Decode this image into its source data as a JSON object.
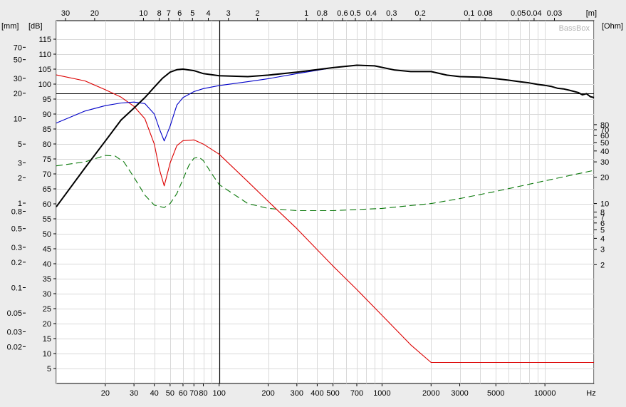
{
  "chart_data": {
    "type": "line",
    "brand": "BassBox",
    "units": {
      "top": "[m]",
      "left_mm": "[mm]",
      "left_db": "[dB]",
      "right": "[Ohm]",
      "bottom": "Hz"
    },
    "x_axis": {
      "scale": "log",
      "range": [
        10,
        20000
      ],
      "ticks": [
        {
          "v": 20,
          "label": "20"
        },
        {
          "v": 30,
          "label": "30"
        },
        {
          "v": 40,
          "label": "40"
        },
        {
          "v": 50,
          "label": "50"
        },
        {
          "v": 60,
          "label": "60"
        },
        {
          "v": 70,
          "label": "70"
        },
        {
          "v": 80,
          "label": "80"
        },
        {
          "v": 100,
          "label": "100"
        },
        {
          "v": 200,
          "label": "200"
        },
        {
          "v": 300,
          "label": "300"
        },
        {
          "v": 400,
          "label": "400"
        },
        {
          "v": 500,
          "label": "500"
        },
        {
          "v": 700,
          "label": "700"
        },
        {
          "v": 1000,
          "label": "1000"
        },
        {
          "v": 2000,
          "label": "2000"
        },
        {
          "v": 3000,
          "label": "3000"
        },
        {
          "v": 5000,
          "label": "5000"
        },
        {
          "v": 10000,
          "label": "10000"
        }
      ]
    },
    "top_axis": {
      "ticks": [
        {
          "v": 11.4,
          "label": "30"
        },
        {
          "v": 17.2,
          "label": "20"
        },
        {
          "v": 34.3,
          "label": "10"
        },
        {
          "v": 42.9,
          "label": "8"
        },
        {
          "v": 49,
          "label": "7"
        },
        {
          "v": 57.2,
          "label": "6"
        },
        {
          "v": 68.6,
          "label": "5"
        },
        {
          "v": 85.8,
          "label": "4"
        },
        {
          "v": 114,
          "label": "3"
        },
        {
          "v": 172,
          "label": "2"
        },
        {
          "v": 343,
          "label": "1"
        },
        {
          "v": 429,
          "label": "0.8"
        },
        {
          "v": 572,
          "label": "0.6"
        },
        {
          "v": 686,
          "label": "0.5"
        },
        {
          "v": 858,
          "label": "0.4"
        },
        {
          "v": 1144,
          "label": "0.3"
        },
        {
          "v": 1716,
          "label": "0.2"
        },
        {
          "v": 3430,
          "label": "0.1"
        },
        {
          "v": 4290,
          "label": "0.08"
        },
        {
          "v": 6860,
          "label": "0.05"
        },
        {
          "v": 8580,
          "label": "0.04"
        },
        {
          "v": 11440,
          "label": "0.03"
        }
      ]
    },
    "y_db": {
      "range": [
        0,
        120
      ],
      "ticks": [
        5,
        10,
        15,
        20,
        25,
        30,
        35,
        40,
        45,
        50,
        55,
        60,
        65,
        70,
        75,
        80,
        85,
        90,
        95,
        100,
        105,
        110,
        115
      ]
    },
    "y_mm": {
      "scale": "log",
      "ticks": [
        {
          "v": 0.02,
          "label": "0.02"
        },
        {
          "v": 0.03,
          "label": "0.03"
        },
        {
          "v": 0.05,
          "label": "0.05"
        },
        {
          "v": 0.1,
          "label": "0.1"
        },
        {
          "v": 0.2,
          "label": "0.2"
        },
        {
          "v": 0.3,
          "label": "0.3"
        },
        {
          "v": 0.5,
          "label": "0.5"
        },
        {
          "v": 0.8,
          "label": "0.8"
        },
        {
          "v": 1,
          "label": "1"
        },
        {
          "v": 2,
          "label": "2"
        },
        {
          "v": 3,
          "label": "3"
        },
        {
          "v": 5,
          "label": "5"
        },
        {
          "v": 10,
          "label": "10"
        },
        {
          "v": 20,
          "label": "20"
        },
        {
          "v": 30,
          "label": "30"
        },
        {
          "v": 50,
          "label": "50"
        },
        {
          "v": 70,
          "label": "70"
        }
      ]
    },
    "y_ohm": {
      "scale": "log",
      "ticks": [
        {
          "v": 2,
          "label": "2"
        },
        {
          "v": 3,
          "label": "3"
        },
        {
          "v": 4,
          "label": "4"
        },
        {
          "v": 5,
          "label": "5"
        },
        {
          "v": 6,
          "label": "6"
        },
        {
          "v": 7,
          "label": "7"
        },
        {
          "v": 8,
          "label": "8"
        },
        {
          "v": 10,
          "label": "10"
        },
        {
          "v": 20,
          "label": "20"
        },
        {
          "v": 30,
          "label": "30"
        },
        {
          "v": 40,
          "label": "40"
        },
        {
          "v": 50,
          "label": "50"
        },
        {
          "v": 60,
          "label": "60"
        },
        {
          "v": 70,
          "label": "70"
        },
        {
          "v": 80,
          "label": "80"
        }
      ]
    },
    "reference_lines": {
      "vertical_hz": 100,
      "horizontal_db": 97
    },
    "series": [
      {
        "color": "#000000",
        "style": "solid",
        "axis": "db",
        "points": [
          [
            10,
            59
          ],
          [
            15,
            72
          ],
          [
            20,
            81
          ],
          [
            25,
            88
          ],
          [
            30,
            92
          ],
          [
            35,
            95.5
          ],
          [
            40,
            99
          ],
          [
            45,
            102
          ],
          [
            50,
            104
          ],
          [
            55,
            104.8
          ],
          [
            60,
            105
          ],
          [
            70,
            104.5
          ],
          [
            80,
            103.5
          ],
          [
            100,
            102.8
          ],
          [
            150,
            102.5
          ],
          [
            200,
            103
          ],
          [
            300,
            104
          ],
          [
            500,
            105.5
          ],
          [
            700,
            106.3
          ],
          [
            900,
            106.1
          ],
          [
            1200,
            104.7
          ],
          [
            1500,
            104.2
          ],
          [
            2000,
            104.2
          ],
          [
            2500,
            103
          ],
          [
            3000,
            102.5
          ],
          [
            4000,
            102.3
          ],
          [
            5000,
            101.8
          ],
          [
            6000,
            101.3
          ],
          [
            7000,
            100.8
          ],
          [
            8000,
            100.4
          ],
          [
            9000,
            99.9
          ],
          [
            10000,
            99.6
          ],
          [
            11000,
            99.2
          ],
          [
            12000,
            98.6
          ],
          [
            13000,
            98.4
          ],
          [
            14000,
            98
          ],
          [
            15000,
            97.6
          ],
          [
            16000,
            97.2
          ],
          [
            17000,
            96.4
          ],
          [
            18000,
            96.8
          ],
          [
            19000,
            95.8
          ],
          [
            20000,
            95.5
          ]
        ]
      },
      {
        "color": "#0000c8",
        "style": "solid",
        "axis": "db",
        "points": [
          [
            10,
            87
          ],
          [
            15,
            91
          ],
          [
            20,
            92.8
          ],
          [
            25,
            93.7
          ],
          [
            30,
            94
          ],
          [
            35,
            93.5
          ],
          [
            40,
            90
          ],
          [
            43,
            85
          ],
          [
            46,
            81
          ],
          [
            50,
            86
          ],
          [
            55,
            93
          ],
          [
            60,
            95.5
          ],
          [
            70,
            97.5
          ],
          [
            80,
            98.5
          ],
          [
            100,
            99.5
          ],
          [
            150,
            100.8
          ],
          [
            200,
            101.8
          ],
          [
            300,
            103.5
          ],
          [
            500,
            105.5
          ],
          [
            700,
            106.3
          ],
          [
            900,
            106.1
          ],
          [
            1200,
            104.7
          ],
          [
            1500,
            104.2
          ],
          [
            2000,
            104.2
          ],
          [
            2500,
            103
          ],
          [
            3000,
            102.5
          ],
          [
            4000,
            102.3
          ],
          [
            5000,
            101.8
          ],
          [
            6000,
            101.3
          ],
          [
            7000,
            100.8
          ],
          [
            8000,
            100.4
          ],
          [
            9000,
            99.9
          ],
          [
            10000,
            99.6
          ],
          [
            11000,
            99.2
          ],
          [
            12000,
            98.6
          ],
          [
            13000,
            98.4
          ],
          [
            14000,
            98
          ],
          [
            15000,
            97.6
          ],
          [
            16000,
            97.2
          ],
          [
            17000,
            96.4
          ],
          [
            18000,
            96.8
          ],
          [
            19000,
            95.8
          ],
          [
            20000,
            95.5
          ]
        ]
      },
      {
        "color": "#dc0000",
        "style": "solid",
        "axis": "mm",
        "points": [
          [
            10,
            33
          ],
          [
            15,
            28
          ],
          [
            20,
            22
          ],
          [
            25,
            18
          ],
          [
            30,
            14
          ],
          [
            35,
            10
          ],
          [
            40,
            5
          ],
          [
            43,
            2.5
          ],
          [
            46,
            1.6
          ],
          [
            50,
            3
          ],
          [
            55,
            4.8
          ],
          [
            60,
            5.5
          ],
          [
            70,
            5.6
          ],
          [
            80,
            5
          ],
          [
            100,
            3.8
          ],
          [
            150,
            1.8
          ],
          [
            200,
            1.05
          ],
          [
            300,
            0.5
          ],
          [
            500,
            0.18
          ],
          [
            700,
            0.095
          ],
          [
            1000,
            0.047
          ],
          [
            1500,
            0.021
          ],
          [
            2000,
            0.013
          ],
          [
            20000,
            0.013
          ]
        ]
      },
      {
        "color": "#0a780a",
        "style": "dashed",
        "axis": "ohm",
        "points": [
          [
            10,
            27
          ],
          [
            15,
            30
          ],
          [
            20,
            35.5
          ],
          [
            23,
            35
          ],
          [
            26,
            30
          ],
          [
            30,
            20
          ],
          [
            35,
            12.5
          ],
          [
            40,
            9.6
          ],
          [
            46,
            9
          ],
          [
            50,
            10
          ],
          [
            55,
            13
          ],
          [
            60,
            19
          ],
          [
            65,
            27
          ],
          [
            70,
            33
          ],
          [
            75,
            34
          ],
          [
            80,
            31
          ],
          [
            90,
            22
          ],
          [
            100,
            16.5
          ],
          [
            150,
            10
          ],
          [
            200,
            8.8
          ],
          [
            300,
            8.3
          ],
          [
            500,
            8.3
          ],
          [
            1000,
            8.8
          ],
          [
            2000,
            10
          ],
          [
            3000,
            11.4
          ],
          [
            5000,
            13.8
          ],
          [
            10000,
            18.2
          ],
          [
            20000,
            24
          ]
        ]
      }
    ]
  }
}
